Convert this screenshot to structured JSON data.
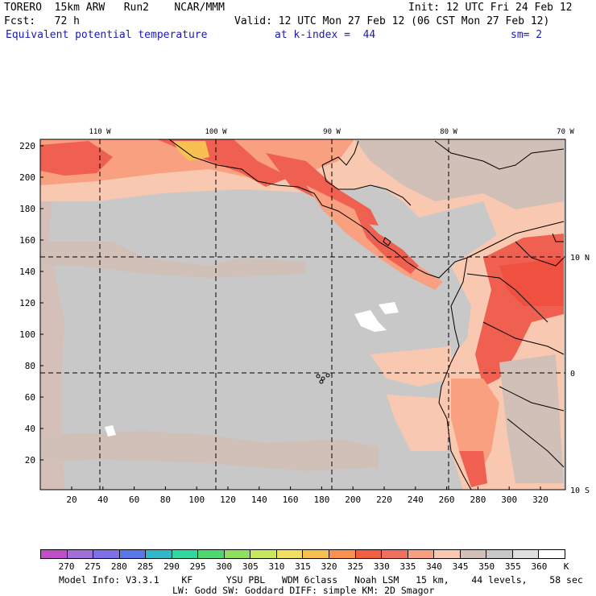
{
  "header": {
    "line1_left": "TORERO  15km ARW   Run2    NCAR/MMM",
    "line1_right": "Init: 12 UTC Fri 24 Feb 12",
    "line2_left": "Fcst:   72 h",
    "line2_right": "Valid: 12 UTC Mon 27 Feb 12 (06 CST Mon 27 Feb 12)",
    "field_name": "Equivalent potential temperature",
    "level": "at k-index =  44",
    "smoothing": "sm= 2"
  },
  "map": {
    "lon_labels": [
      "110 W",
      "100 W",
      "90 W",
      "80 W",
      "70 W"
    ],
    "lat_labels": [
      "10 N",
      "0",
      "10 S"
    ],
    "y_ticks": [
      "220",
      "200",
      "180",
      "160",
      "140",
      "120",
      "100",
      "80",
      "60",
      "40",
      "20"
    ],
    "x_ticks": [
      "20",
      "40",
      "60",
      "80",
      "100",
      "120",
      "140",
      "160",
      "180",
      "200",
      "220",
      "240",
      "260",
      "280",
      "300",
      "320"
    ]
  },
  "colorbar": {
    "labels": [
      "270",
      "275",
      "280",
      "285",
      "290",
      "295",
      "300",
      "305",
      "310",
      "315",
      "320",
      "325",
      "330",
      "335",
      "340",
      "345",
      "350",
      "355",
      "360"
    ],
    "unit": "K",
    "colors": [
      "#c050c8",
      "#a070d8",
      "#8070e8",
      "#5878e8",
      "#30b8c8",
      "#30d8a0",
      "#50d870",
      "#90e060",
      "#c8e860",
      "#f0e060",
      "#f8c050",
      "#f89050",
      "#f06040",
      "#f07060",
      "#f8a080",
      "#f8c8b0",
      "#d0c0b8",
      "#c8c8c8",
      "#e0e0e0",
      "#ffffff"
    ]
  },
  "footer": {
    "line1": "Model Info: V3.3.1    KF      YSU PBL   WDM 6class   Noah LSM   15 km,    44 levels,    58 sec",
    "line2": "LW: Godd SW: Goddard DIFF: simple KM: 2D Smagor"
  }
}
